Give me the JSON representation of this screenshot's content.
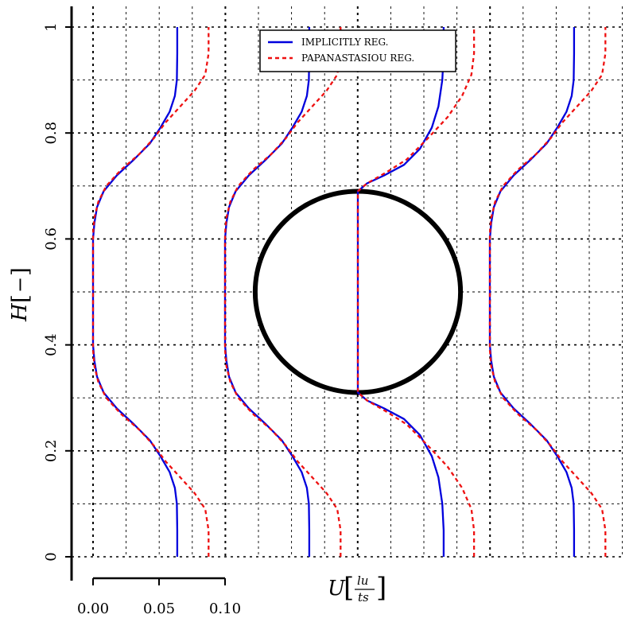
{
  "chart_data": {
    "type": "line",
    "title": "",
    "xlabel": "U",
    "xlabel_unit_numerator": "lu",
    "xlabel_unit_denominator": "ts",
    "ylabel": "H",
    "ylabel_unit": "−",
    "ylim": [
      0,
      1
    ],
    "yticks": [
      "0",
      "0.2",
      "0.4",
      "0.6",
      "0.8",
      "1"
    ],
    "x_scale_ticks": [
      "0.00",
      "0.05",
      "0.10"
    ],
    "grid": true,
    "legend_position": "top-center",
    "profile_stations": [
      0,
      1,
      2,
      3
    ],
    "series": [
      {
        "name": "IMPLICITLY REG.",
        "color": "#0000dd",
        "style": "solid",
        "profiles": [
          [
            [
              0.0638,
              0
            ],
            [
              0.0638,
              0.05
            ],
            [
              0.0635,
              0.1
            ],
            [
              0.062,
              0.13
            ],
            [
              0.058,
              0.16
            ],
            [
              0.051,
              0.19
            ],
            [
              0.043,
              0.22
            ],
            [
              0.031,
              0.25
            ],
            [
              0.018,
              0.28
            ],
            [
              0.008,
              0.31
            ],
            [
              0.003,
              0.34
            ],
            [
              0.001,
              0.37
            ],
            [
              0,
              0.4
            ],
            [
              0,
              0.6
            ],
            [
              0.001,
              0.63
            ],
            [
              0.003,
              0.66
            ],
            [
              0.008,
              0.69
            ],
            [
              0.018,
              0.72
            ],
            [
              0.031,
              0.75
            ],
            [
              0.043,
              0.78
            ],
            [
              0.051,
              0.81
            ],
            [
              0.058,
              0.84
            ],
            [
              0.062,
              0.87
            ],
            [
              0.0635,
              0.9
            ],
            [
              0.0638,
              0.95
            ],
            [
              0.0638,
              1
            ]
          ],
          [
            [
              0.0638,
              0
            ],
            [
              0.0638,
              0.05
            ],
            [
              0.0635,
              0.1
            ],
            [
              0.062,
              0.13
            ],
            [
              0.058,
              0.16
            ],
            [
              0.051,
              0.19
            ],
            [
              0.043,
              0.22
            ],
            [
              0.031,
              0.25
            ],
            [
              0.018,
              0.28
            ],
            [
              0.008,
              0.31
            ],
            [
              0.003,
              0.34
            ],
            [
              0.001,
              0.37
            ],
            [
              0,
              0.4
            ],
            [
              0,
              0.6
            ],
            [
              0.001,
              0.63
            ],
            [
              0.003,
              0.66
            ],
            [
              0.008,
              0.69
            ],
            [
              0.018,
              0.72
            ],
            [
              0.031,
              0.75
            ],
            [
              0.043,
              0.78
            ],
            [
              0.051,
              0.81
            ],
            [
              0.058,
              0.84
            ],
            [
              0.062,
              0.87
            ],
            [
              0.0635,
              0.9
            ],
            [
              0.0638,
              0.95
            ],
            [
              0.0638,
              1
            ]
          ],
          [
            [
              0.065,
              0
            ],
            [
              0.065,
              0.05
            ],
            [
              0.064,
              0.1
            ],
            [
              0.061,
              0.15
            ],
            [
              0.056,
              0.19
            ],
            [
              0.047,
              0.23
            ],
            [
              0.035,
              0.26
            ],
            [
              0.02,
              0.28
            ],
            [
              0.007,
              0.295
            ],
            [
              0,
              0.31
            ],
            [
              0,
              0.69
            ],
            [
              0.007,
              0.705
            ],
            [
              0.02,
              0.72
            ],
            [
              0.035,
              0.74
            ],
            [
              0.047,
              0.77
            ],
            [
              0.056,
              0.81
            ],
            [
              0.061,
              0.85
            ],
            [
              0.064,
              0.9
            ],
            [
              0.065,
              0.95
            ],
            [
              0.065,
              1
            ]
          ],
          [
            [
              0.0638,
              0
            ],
            [
              0.0638,
              0.05
            ],
            [
              0.0635,
              0.1
            ],
            [
              0.062,
              0.13
            ],
            [
              0.058,
              0.16
            ],
            [
              0.051,
              0.19
            ],
            [
              0.043,
              0.22
            ],
            [
              0.031,
              0.25
            ],
            [
              0.018,
              0.28
            ],
            [
              0.008,
              0.31
            ],
            [
              0.003,
              0.34
            ],
            [
              0.001,
              0.37
            ],
            [
              0,
              0.4
            ],
            [
              0,
              0.6
            ],
            [
              0.001,
              0.63
            ],
            [
              0.003,
              0.66
            ],
            [
              0.008,
              0.69
            ],
            [
              0.018,
              0.72
            ],
            [
              0.031,
              0.75
            ],
            [
              0.043,
              0.78
            ],
            [
              0.051,
              0.81
            ],
            [
              0.058,
              0.84
            ],
            [
              0.062,
              0.87
            ],
            [
              0.0635,
              0.9
            ],
            [
              0.0638,
              0.95
            ],
            [
              0.0638,
              1
            ]
          ]
        ]
      },
      {
        "name": "PAPANASTASIOU REG.",
        "color": "#ee1111",
        "style": "dashed",
        "profiles": [
          [
            [
              0.0875,
              0
            ],
            [
              0.0875,
              0.05
            ],
            [
              0.085,
              0.09
            ],
            [
              0.077,
              0.12
            ],
            [
              0.066,
              0.15
            ],
            [
              0.055,
              0.18
            ],
            [
              0.046,
              0.21
            ],
            [
              0.035,
              0.24
            ],
            [
              0.021,
              0.27
            ],
            [
              0.01,
              0.3
            ],
            [
              0.004,
              0.33
            ],
            [
              0.001,
              0.36
            ],
            [
              0,
              0.39
            ],
            [
              0,
              0.61
            ],
            [
              0.001,
              0.64
            ],
            [
              0.004,
              0.67
            ],
            [
              0.01,
              0.7
            ],
            [
              0.021,
              0.73
            ],
            [
              0.035,
              0.76
            ],
            [
              0.046,
              0.79
            ],
            [
              0.055,
              0.82
            ],
            [
              0.066,
              0.85
            ],
            [
              0.077,
              0.88
            ],
            [
              0.085,
              0.91
            ],
            [
              0.0875,
              0.95
            ],
            [
              0.0875,
              1
            ]
          ],
          [
            [
              0.0875,
              0
            ],
            [
              0.0875,
              0.05
            ],
            [
              0.085,
              0.09
            ],
            [
              0.077,
              0.12
            ],
            [
              0.066,
              0.15
            ],
            [
              0.055,
              0.18
            ],
            [
              0.046,
              0.21
            ],
            [
              0.035,
              0.24
            ],
            [
              0.021,
              0.27
            ],
            [
              0.01,
              0.3
            ],
            [
              0.004,
              0.33
            ],
            [
              0.001,
              0.36
            ],
            [
              0,
              0.39
            ],
            [
              0,
              0.61
            ],
            [
              0.001,
              0.64
            ],
            [
              0.004,
              0.67
            ],
            [
              0.01,
              0.7
            ],
            [
              0.021,
              0.73
            ],
            [
              0.035,
              0.76
            ],
            [
              0.046,
              0.79
            ],
            [
              0.055,
              0.82
            ],
            [
              0.066,
              0.85
            ],
            [
              0.077,
              0.88
            ],
            [
              0.085,
              0.91
            ],
            [
              0.0875,
              0.95
            ],
            [
              0.0875,
              1
            ]
          ],
          [
            [
              0.088,
              0
            ],
            [
              0.088,
              0.05
            ],
            [
              0.086,
              0.09
            ],
            [
              0.079,
              0.13
            ],
            [
              0.068,
              0.17
            ],
            [
              0.053,
              0.21
            ],
            [
              0.037,
              0.25
            ],
            [
              0.021,
              0.275
            ],
            [
              0.007,
              0.295
            ],
            [
              0,
              0.31
            ],
            [
              0,
              0.69
            ],
            [
              0.007,
              0.705
            ],
            [
              0.021,
              0.725
            ],
            [
              0.037,
              0.75
            ],
            [
              0.053,
              0.79
            ],
            [
              0.068,
              0.83
            ],
            [
              0.079,
              0.87
            ],
            [
              0.086,
              0.91
            ],
            [
              0.088,
              0.95
            ],
            [
              0.088,
              1
            ]
          ],
          [
            [
              0.0875,
              0
            ],
            [
              0.0875,
              0.05
            ],
            [
              0.085,
              0.09
            ],
            [
              0.077,
              0.12
            ],
            [
              0.066,
              0.15
            ],
            [
              0.055,
              0.18
            ],
            [
              0.046,
              0.21
            ],
            [
              0.035,
              0.24
            ],
            [
              0.021,
              0.27
            ],
            [
              0.01,
              0.3
            ],
            [
              0.004,
              0.33
            ],
            [
              0.001,
              0.36
            ],
            [
              0,
              0.39
            ],
            [
              0,
              0.61
            ],
            [
              0.001,
              0.64
            ],
            [
              0.004,
              0.67
            ],
            [
              0.01,
              0.7
            ],
            [
              0.021,
              0.73
            ],
            [
              0.035,
              0.76
            ],
            [
              0.046,
              0.79
            ],
            [
              0.055,
              0.82
            ],
            [
              0.066,
              0.85
            ],
            [
              0.077,
              0.88
            ],
            [
              0.085,
              0.91
            ],
            [
              0.0875,
              0.95
            ],
            [
              0.0875,
              1
            ]
          ]
        ]
      }
    ],
    "cylinder": {
      "center_station": 2,
      "center_y": 0.5,
      "radius": 0.19
    }
  }
}
